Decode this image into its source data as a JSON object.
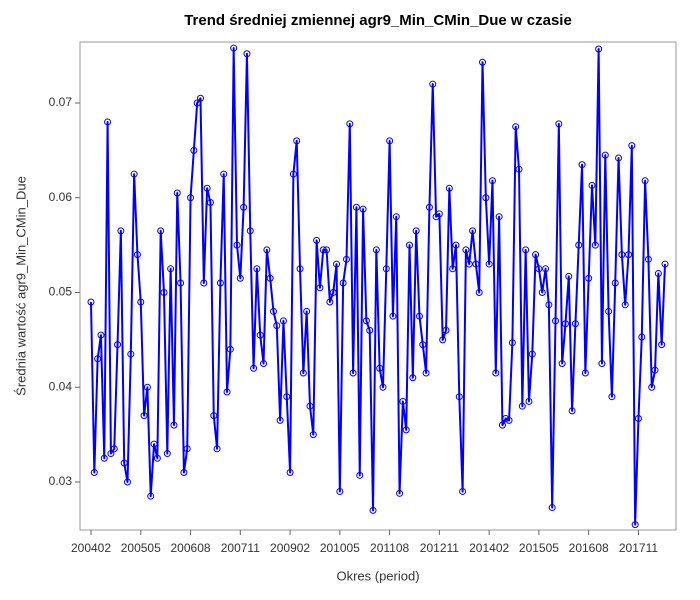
{
  "chart_data": {
    "type": "line",
    "title": "Trend średniej zmiennej agr9_Min_CMin_Due w czasie",
    "x_label": "Okres (period)",
    "y_label": "Średnia wartość agr9_Min_CMin_Due",
    "categories": [
      "200402",
      null,
      null,
      null,
      null,
      null,
      null,
      null,
      null,
      null,
      null,
      null,
      null,
      null,
      null,
      "200505",
      null,
      null,
      null,
      null,
      null,
      null,
      null,
      null,
      null,
      null,
      null,
      null,
      null,
      null,
      "200608",
      null,
      null,
      null,
      null,
      null,
      null,
      null,
      null,
      null,
      null,
      null,
      null,
      null,
      null,
      "200711",
      null,
      null,
      null,
      null,
      null,
      null,
      null,
      null,
      null,
      null,
      null,
      null,
      null,
      null,
      "200902",
      null,
      null,
      null,
      null,
      null,
      null,
      null,
      null,
      null,
      null,
      null,
      null,
      null,
      null,
      "201005",
      null,
      null,
      null,
      null,
      null,
      null,
      null,
      null,
      null,
      null,
      null,
      null,
      null,
      null,
      "201108",
      null,
      null,
      null,
      null,
      null,
      null,
      null,
      null,
      null,
      null,
      null,
      null,
      null,
      null,
      "201211",
      null,
      null,
      null,
      null,
      null,
      null,
      null,
      null,
      null,
      null,
      null,
      null,
      null,
      null,
      "201402",
      null,
      null,
      null,
      null,
      null,
      null,
      null,
      null,
      null,
      null,
      null,
      null,
      null,
      null,
      "201505",
      null,
      null,
      null,
      null,
      null,
      null,
      null,
      null,
      null,
      null,
      null,
      null,
      null,
      null,
      "201608",
      null,
      null,
      null,
      null,
      null,
      null,
      null,
      null,
      null,
      null,
      null,
      null,
      null,
      null,
      "201711",
      null,
      null,
      null,
      null,
      null,
      null,
      null,
      null
    ],
    "series": [
      {
        "color": "#0000ff",
        "values": [
          0.049,
          0.031,
          0.043,
          0.0455,
          0.0325,
          0.068,
          0.033,
          0.0335,
          0.0445,
          0.0565,
          0.032,
          0.03,
          0.0435,
          0.0625,
          0.054,
          0.049,
          0.037,
          0.04,
          0.0285,
          0.034,
          0.0325,
          0.0565,
          0.05,
          0.033,
          0.0525,
          0.036,
          0.0605,
          0.051,
          0.031,
          0.0335,
          0.06,
          0.065,
          0.07,
          0.0705,
          0.051,
          0.061,
          0.0595,
          0.037,
          0.0335,
          0.051,
          0.0625,
          0.0395,
          0.044,
          0.0758,
          0.055,
          0.0515,
          0.059,
          0.0752,
          0.0565,
          0.042,
          0.0525,
          0.0455,
          0.0425,
          0.0545,
          0.0515,
          0.048,
          0.0465,
          0.0365,
          0.047,
          0.039,
          0.031,
          0.0625,
          0.066,
          0.0525,
          0.0415,
          0.048,
          0.038,
          0.035,
          0.0555,
          0.0505,
          0.0545,
          0.0545,
          0.049,
          0.05,
          0.053,
          0.029,
          0.051,
          0.0535,
          0.0678,
          0.0415,
          0.059,
          0.0307,
          0.0588,
          0.047,
          0.046,
          0.027,
          0.0545,
          0.042,
          0.04,
          0.0525,
          0.066,
          0.0475,
          0.058,
          0.0288,
          0.0385,
          0.0355,
          0.055,
          0.041,
          0.0565,
          0.0475,
          0.0445,
          0.0415,
          0.059,
          0.072,
          0.058,
          0.0583,
          0.045,
          0.046,
          0.061,
          0.0525,
          0.055,
          0.039,
          0.029,
          0.0545,
          0.053,
          0.0565,
          0.053,
          0.05,
          0.0743,
          0.06,
          0.053,
          0.0618,
          0.0415,
          0.058,
          0.036,
          0.0367,
          0.0365,
          0.0447,
          0.0675,
          0.063,
          0.038,
          0.0545,
          0.0385,
          0.0435,
          0.054,
          0.0525,
          0.05,
          0.0525,
          0.0487,
          0.0273,
          0.047,
          0.0678,
          0.0425,
          0.0467,
          0.0517,
          0.0375,
          0.0467,
          0.055,
          0.0635,
          0.0415,
          0.0515,
          0.0613,
          0.055,
          0.0757,
          0.0425,
          0.0645,
          0.048,
          0.039,
          0.051,
          0.0642,
          0.054,
          0.0487,
          0.054,
          0.0655,
          0.0255,
          0.0367,
          0.0453,
          0.0618,
          0.0535,
          0.04,
          0.0418,
          0.052,
          0.0445,
          0.053
        ]
      }
    ],
    "ylim": [
      0.02493,
      0.07644
    ],
    "yticks": [
      0.03,
      0.04,
      0.05,
      0.06,
      0.07
    ],
    "grid": false,
    "markers": true
  }
}
